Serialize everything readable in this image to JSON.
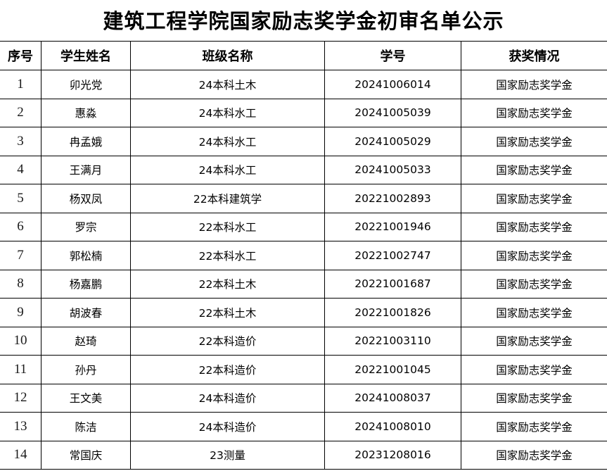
{
  "title": "建筑工程学院国家励志奖学金初审名单公示",
  "headers": [
    "序号",
    "学生姓名",
    "班级名称",
    "学号",
    "获奖情况"
  ],
  "rows": [
    [
      "1",
      "卯光党",
      "24本科土木",
      "20241006014",
      "国家励志奖学金"
    ],
    [
      "2",
      "惠淼",
      "24本科水工",
      "20241005039",
      "国家励志奖学金"
    ],
    [
      "3",
      "冉孟娥",
      "24本科水工",
      "20241005029",
      "国家励志奖学金"
    ],
    [
      "4",
      "王满月",
      "24本科水工",
      "20241005033",
      "国家励志奖学金"
    ],
    [
      "5",
      "杨双凤",
      "22本科建筑学",
      "20221002893",
      "国家励志奖学金"
    ],
    [
      "6",
      "罗宗",
      "22本科水工",
      "20221001946",
      "国家励志奖学金"
    ],
    [
      "7",
      "郭松楠",
      "22本科水工",
      "20221002747",
      "国家励志奖学金"
    ],
    [
      "8",
      "杨嘉鹏",
      "22本科土木",
      "20221001687",
      "国家励志奖学金"
    ],
    [
      "9",
      "胡波春",
      "22本科土木",
      "20221001826",
      "国家励志奖学金"
    ],
    [
      "10",
      "赵琦",
      "22本科造价",
      "20221003110",
      "国家励志奖学金"
    ],
    [
      "11",
      "孙丹",
      "22本科造价",
      "20221001045",
      "国家励志奖学金"
    ],
    [
      "12",
      "王文美",
      "24本科造价",
      "20241008037",
      "国家励志奖学金"
    ],
    [
      "13",
      "陈洁",
      "24本科造价",
      "20241008010",
      "国家励志奖学金"
    ],
    [
      "14",
      "常国庆",
      "23测量",
      "20231208016",
      "国家励志奖学金"
    ]
  ]
}
